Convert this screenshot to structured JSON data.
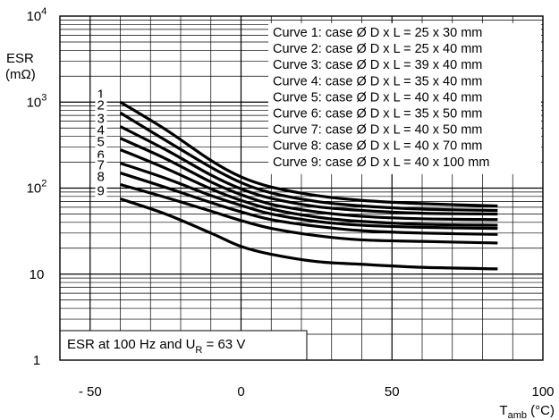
{
  "chart_data": {
    "type": "line",
    "ylabel": "ESR",
    "yunit": "(mΩ)",
    "xlabel_main": "T",
    "xlabel_sub": "amb",
    "xlabel_unit": "(°C)",
    "xlim": [
      -60,
      100
    ],
    "ylim": [
      1,
      10000
    ],
    "yscale": "log",
    "grid": true,
    "x_ticks": [
      {
        "value": -50,
        "label": "- 50"
      },
      {
        "value": 0,
        "label": "0"
      },
      {
        "value": 50,
        "label": "50"
      },
      {
        "value": 100,
        "label": "100"
      }
    ],
    "y_ticks": [
      {
        "value": 1,
        "label": "1"
      },
      {
        "value": 10,
        "label": "10"
      },
      {
        "value": 100,
        "label": "10",
        "sup": "2"
      },
      {
        "value": 1000,
        "label": "10",
        "sup": "3"
      },
      {
        "value": 10000,
        "label": "10",
        "sup": "4"
      }
    ],
    "legend_entries": [
      "Curve 1: case Ø D x L = 25 x 30 mm",
      "Curve 2: case Ø D x L = 25 x 40 mm",
      "Curve 3: case Ø D x L = 39 x 40 mm",
      "Curve 4: case Ø D x L = 35 x 40 mm",
      "Curve 5: case Ø D x L = 40 x 40 mm",
      "Curve 6: case Ø D x L = 35 x 50 mm",
      "Curve 7: case Ø D x L = 40 x 50 mm",
      "Curve 8: case Ø D x L = 40 x 70 mm",
      "Curve 9: case Ø D x L = 40 x 100 mm"
    ],
    "legend_placement": "top-right",
    "annotation": {
      "prefix": "ESR at 100 Hz and U",
      "sub": "R",
      "suffix": " = 63 V"
    },
    "x": [
      -40,
      -25,
      -10,
      0,
      10,
      25,
      40,
      60,
      85
    ],
    "series": [
      {
        "name": "1",
        "values": [
          1000,
          480,
          210,
          135,
          103,
          82,
          72,
          66,
          62
        ]
      },
      {
        "name": "2",
        "values": [
          750,
          360,
          175,
          116,
          88,
          70,
          62,
          57,
          55
        ]
      },
      {
        "name": "3",
        "values": [
          520,
          280,
          142,
          98,
          76,
          61,
          55,
          51,
          50
        ]
      },
      {
        "name": "4",
        "values": [
          380,
          220,
          118,
          84,
          65,
          53,
          47,
          44,
          43
        ]
      },
      {
        "name": "5",
        "values": [
          280,
          170,
          98,
          72,
          57,
          46,
          41,
          38,
          37
        ]
      },
      {
        "name": "6",
        "values": [
          195,
          130,
          82,
          63,
          50,
          41,
          37,
          35,
          34
        ]
      },
      {
        "name": "7",
        "values": [
          150,
          102,
          68,
          53,
          43,
          36,
          32,
          30,
          29
        ]
      },
      {
        "name": "8",
        "values": [
          110,
          78,
          54,
          42,
          34,
          28,
          25,
          24,
          23
        ]
      },
      {
        "name": "9",
        "values": [
          75,
          50,
          30,
          21,
          17,
          14,
          13,
          12,
          11.5
        ]
      }
    ]
  }
}
